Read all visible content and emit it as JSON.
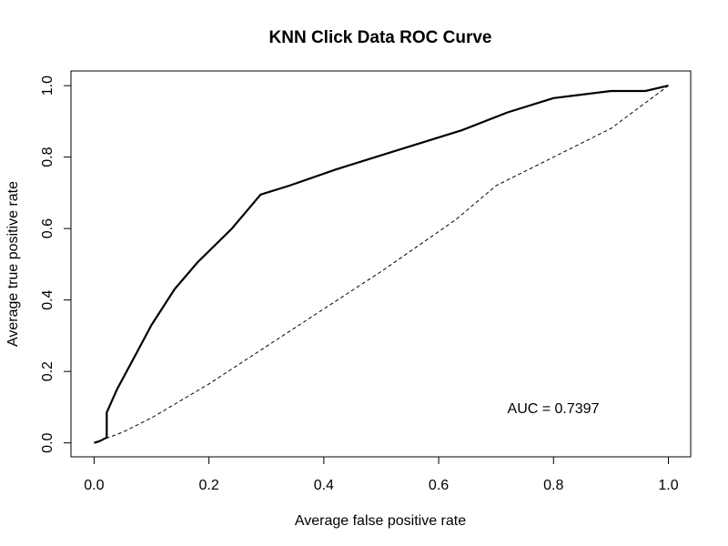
{
  "chart_data": {
    "type": "line",
    "title": "KNN Click Data ROC Curve",
    "xlabel": "Average false positive rate",
    "ylabel": "Average true positive rate",
    "xlim": [
      0,
      1
    ],
    "ylim": [
      0,
      1
    ],
    "x_ticks": [
      "0.0",
      "0.2",
      "0.4",
      "0.6",
      "0.8",
      "1.0"
    ],
    "y_ticks": [
      "0.0",
      "0.2",
      "0.4",
      "0.6",
      "0.8",
      "1.0"
    ],
    "grid": false,
    "legend": "none",
    "annotation": "AUC = 0.7397",
    "series": [
      {
        "style": "solid-thick",
        "color": "#000000",
        "x": [
          0.0,
          0.01,
          0.022,
          0.022,
          0.04,
          0.07,
          0.1,
          0.14,
          0.18,
          0.24,
          0.29,
          0.34,
          0.42,
          0.52,
          0.64,
          0.72,
          0.8,
          0.9,
          0.96,
          1.0
        ],
        "y": [
          0.0,
          0.005,
          0.015,
          0.085,
          0.15,
          0.24,
          0.33,
          0.43,
          0.505,
          0.6,
          0.695,
          0.72,
          0.765,
          0.815,
          0.875,
          0.925,
          0.965,
          0.985,
          0.985,
          1.0
        ]
      },
      {
        "style": "dashed-thin",
        "color": "#000000",
        "x": [
          0.0,
          0.05,
          0.1,
          0.2,
          0.3,
          0.4,
          0.5,
          0.63,
          0.7,
          0.8,
          0.9,
          1.0
        ],
        "y": [
          0.0,
          0.03,
          0.07,
          0.165,
          0.27,
          0.375,
          0.48,
          0.625,
          0.72,
          0.8,
          0.88,
          1.0
        ]
      }
    ]
  }
}
